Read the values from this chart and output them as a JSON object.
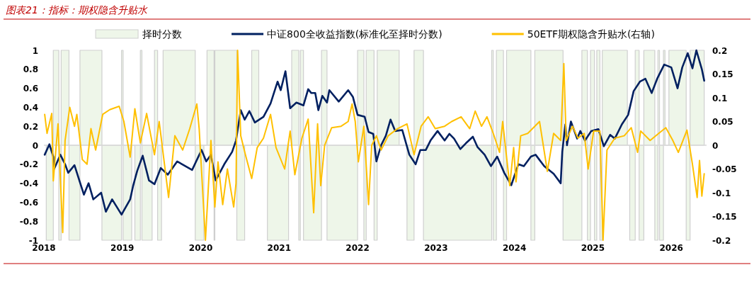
{
  "chart_data": {
    "type": "line",
    "title": "图表21：指标：期权隐含升贴水",
    "legend": "top",
    "xlim": [
      2018,
      2026.45
    ],
    "xticks": [
      2018,
      2019,
      2020,
      2021,
      2022,
      2023,
      2024,
      2025,
      2026
    ],
    "ylim": [
      -1,
      1
    ],
    "yticks": [
      -1,
      -0.8,
      -0.6,
      -0.4,
      -0.2,
      0,
      0.2,
      0.4,
      0.6,
      0.8,
      1
    ],
    "y2lim": [
      -0.2,
      0.2
    ],
    "y2ticks": [
      -0.2,
      -0.15,
      -0.1,
      -0.05,
      0,
      0.05,
      0.1,
      0.15,
      0.2
    ],
    "series": [
      {
        "name": "择时分数",
        "type": "area",
        "color": "#eef6e9",
        "x": [
          2018.03,
          2018.12,
          2018.12,
          2018.19,
          2018.19,
          2018.22,
          2018.22,
          2018.32,
          2018.32,
          2018.46,
          2018.46,
          2018.74,
          2018.74,
          2018.99,
          2018.99,
          2019.01,
          2019.01,
          2019.12,
          2019.12,
          2019.16,
          2019.16,
          2019.23,
          2019.23,
          2019.25,
          2019.25,
          2019.38,
          2019.38,
          2019.41,
          2019.41,
          2019.45,
          2019.45,
          2019.5,
          2019.5,
          2019.52,
          2019.52,
          2019.93,
          2019.93,
          2020.04,
          2020.04,
          2020.08,
          2020.08,
          2020.17,
          2020.17,
          2020.18,
          2020.18,
          2020.46,
          2020.46,
          2020.56,
          2020.56,
          2020.65,
          2020.65,
          2020.74,
          2020.74,
          2020.85,
          2020.85,
          2021.12,
          2021.12,
          2021.16,
          2021.16,
          2021.25,
          2021.25,
          2021.27,
          2021.27,
          2021.31,
          2021.31,
          2021.54,
          2021.54,
          2021.61,
          2021.61,
          2022.0,
          2022.0,
          2022.08,
          2022.08,
          2022.11,
          2022.11,
          2022.21,
          2022.21,
          2022.25,
          2022.25,
          2022.53,
          2022.53,
          2022.63,
          2022.63,
          2022.72,
          2022.72,
          2022.84,
          2022.84,
          2023.71,
          2023.71,
          2023.73,
          2023.73,
          2023.77,
          2023.77,
          2023.86,
          2023.86,
          2023.9,
          2023.9,
          2024.21,
          2024.21,
          2024.26,
          2024.26,
          2024.62,
          2024.62,
          2024.86,
          2024.86,
          2024.93,
          2024.93,
          2024.97,
          2024.97,
          2025.02,
          2025.02,
          2025.05,
          2025.05,
          2025.09,
          2025.09,
          2025.12,
          2025.12,
          2025.44,
          2025.44,
          2025.47,
          2025.47,
          2025.54,
          2025.54,
          2025.59,
          2025.59,
          2025.65,
          2025.65,
          2025.79,
          2025.79,
          2025.83,
          2025.83,
          2025.85,
          2025.85,
          2025.9,
          2025.9,
          2025.92,
          2025.92,
          2025.97,
          2025.97,
          2026.19,
          2026.19,
          2026.24,
          2026.24,
          2026.42
        ],
        "values": [
          -1,
          -1,
          1,
          1,
          -1,
          -1,
          1,
          1,
          -1,
          -1,
          1,
          1,
          -1,
          -1,
          1,
          1,
          -1,
          -1,
          0,
          0,
          -1,
          -1,
          1,
          1,
          -1,
          -1,
          0,
          0,
          1,
          1,
          -1,
          -1,
          0,
          0,
          1,
          1,
          -1,
          -1,
          0,
          0,
          1,
          1,
          -1,
          -1,
          1,
          1,
          -1,
          -1,
          0,
          0,
          1,
          1,
          0,
          0,
          -1,
          -1,
          0,
          0,
          1,
          1,
          -1,
          -1,
          1,
          1,
          -1,
          -1,
          1,
          1,
          -1,
          -1,
          1,
          1,
          -1,
          -1,
          1,
          1,
          -1,
          -1,
          1,
          1,
          0,
          0,
          -1,
          -1,
          1,
          1,
          -1,
          -1,
          1,
          1,
          -1,
          -1,
          1,
          1,
          -1,
          -1,
          1,
          1,
          -1,
          -1,
          1,
          1,
          -1,
          -1,
          1,
          1,
          -1,
          -1,
          1,
          1,
          -1,
          -1,
          1,
          1,
          -1,
          -1,
          1,
          1,
          0,
          0,
          -1,
          -1,
          1,
          1,
          -1,
          -1,
          1,
          1,
          -1,
          -1,
          1,
          1,
          -1,
          -1,
          1,
          1,
          0,
          0,
          1,
          1,
          -1,
          -1,
          1,
          1
        ]
      },
      {
        "name": "中证800全收益指数(标准化至择时分数)",
        "color": "#002060",
        "x": [
          2018.01,
          2018.07,
          2018.12,
          2018.13,
          2018.21,
          2018.27,
          2018.31,
          2018.39,
          2018.51,
          2018.57,
          2018.63,
          2018.73,
          2018.79,
          2018.87,
          2018.93,
          2018.99,
          2019.1,
          2019.14,
          2019.19,
          2019.26,
          2019.34,
          2019.41,
          2019.49,
          2019.58,
          2019.7,
          2019.89,
          2020.01,
          2020.07,
          2020.13,
          2020.19,
          2020.3,
          2020.4,
          2020.45,
          2020.51,
          2020.56,
          2020.62,
          2020.69,
          2020.8,
          2020.89,
          2020.98,
          2021.02,
          2021.08,
          2021.14,
          2021.22,
          2021.31,
          2021.37,
          2021.41,
          2021.46,
          2021.5,
          2021.55,
          2021.61,
          2021.64,
          2021.76,
          2021.88,
          2021.94,
          2022.0,
          2022.09,
          2022.14,
          2022.2,
          2022.24,
          2022.3,
          2022.36,
          2022.42,
          2022.48,
          2022.57,
          2022.66,
          2022.74,
          2022.8,
          2022.87,
          2022.93,
          2023.02,
          2023.11,
          2023.17,
          2023.23,
          2023.31,
          2023.38,
          2023.47,
          2023.53,
          2023.62,
          2023.7,
          2023.78,
          2023.87,
          2023.96,
          2024.05,
          2024.12,
          2024.21,
          2024.27,
          2024.38,
          2024.5,
          2024.59,
          2024.61,
          2024.65,
          2024.67,
          2024.72,
          2024.8,
          2024.84,
          2024.9,
          2024.98,
          2025.07,
          2025.14,
          2025.22,
          2025.28,
          2025.37,
          2025.45,
          2025.52,
          2025.6,
          2025.67,
          2025.75,
          2025.82,
          2025.91,
          2026.0,
          2026.08,
          2026.14,
          2026.21,
          2026.27,
          2026.32,
          2026.39,
          2026.42
        ],
        "values": [
          -0.1,
          0.01,
          -0.12,
          -0.25,
          -0.1,
          -0.2,
          -0.29,
          -0.21,
          -0.52,
          -0.4,
          -0.57,
          -0.5,
          -0.7,
          -0.57,
          -0.65,
          -0.73,
          -0.57,
          -0.42,
          -0.27,
          -0.11,
          -0.37,
          -0.41,
          -0.24,
          -0.31,
          -0.17,
          -0.26,
          -0.05,
          -0.17,
          -0.1,
          -0.37,
          -0.2,
          -0.07,
          0.05,
          0.37,
          0.27,
          0.36,
          0.24,
          0.3,
          0.44,
          0.67,
          0.58,
          0.78,
          0.39,
          0.45,
          0.42,
          0.59,
          0.55,
          0.55,
          0.37,
          0.52,
          0.45,
          0.58,
          0.46,
          0.58,
          0.51,
          0.32,
          0.3,
          0.14,
          0.12,
          -0.17,
          0.0,
          0.1,
          0.27,
          0.15,
          0.16,
          -0.1,
          -0.2,
          -0.05,
          -0.05,
          0.05,
          0.15,
          0.05,
          0.12,
          0.07,
          -0.04,
          0.02,
          0.09,
          -0.02,
          -0.1,
          -0.22,
          -0.12,
          -0.29,
          -0.42,
          -0.2,
          -0.22,
          -0.12,
          -0.1,
          -0.22,
          -0.3,
          -0.4,
          -0.07,
          0.22,
          0.0,
          0.25,
          0.07,
          0.15,
          0.05,
          0.15,
          0.17,
          -0.01,
          0.11,
          0.07,
          0.22,
          0.32,
          0.57,
          0.67,
          0.7,
          0.55,
          0.7,
          0.85,
          0.82,
          0.6,
          0.82,
          0.97,
          0.81,
          1.0,
          0.8,
          0.68
        ]
      },
      {
        "name": "50ETF期权隐含升贴水(右轴)",
        "axis": "y2",
        "color": "#ffc000",
        "x": [
          2018.01,
          2018.04,
          2018.1,
          2018.12,
          2018.18,
          2018.24,
          2018.27,
          2018.33,
          2018.39,
          2018.42,
          2018.49,
          2018.55,
          2018.6,
          2018.66,
          2018.75,
          2018.84,
          2018.96,
          2019.02,
          2019.1,
          2019.16,
          2019.23,
          2019.31,
          2019.41,
          2019.47,
          2019.59,
          2019.67,
          2019.77,
          2019.86,
          2019.95,
          2019.98,
          2020.06,
          2020.13,
          2020.18,
          2020.22,
          2020.28,
          2020.34,
          2020.42,
          2020.45,
          2020.47,
          2020.51,
          2020.57,
          2020.65,
          2020.72,
          2020.8,
          2020.89,
          2020.96,
          2021.07,
          2021.14,
          2021.2,
          2021.29,
          2021.37,
          2021.44,
          2021.49,
          2021.53,
          2021.58,
          2021.67,
          2021.79,
          2021.88,
          2021.93,
          2021.97,
          2022.01,
          2022.08,
          2022.14,
          2022.18,
          2022.24,
          2022.3,
          2022.39,
          2022.51,
          2022.63,
          2022.72,
          2022.81,
          2022.9,
          2022.99,
          2023.11,
          2023.2,
          2023.32,
          2023.43,
          2023.5,
          2023.58,
          2023.65,
          2023.73,
          2023.81,
          2023.85,
          2023.94,
          2023.99,
          2024.02,
          2024.08,
          2024.17,
          2024.32,
          2024.42,
          2024.5,
          2024.59,
          2024.63,
          2024.66,
          2024.74,
          2024.81,
          2024.89,
          2024.94,
          2025.01,
          2025.09,
          2025.13,
          2025.18,
          2025.28,
          2025.4,
          2025.49,
          2025.57,
          2025.61,
          2025.73,
          2025.84,
          2025.93,
          2026.02,
          2026.09,
          2026.2,
          2026.27,
          2026.33,
          2026.36,
          2026.39,
          2026.42
        ],
        "values": [
          0.065,
          0.025,
          0.067,
          -0.075,
          0.045,
          -0.184,
          0.01,
          0.08,
          0.04,
          0.065,
          -0.03,
          -0.04,
          0.035,
          -0.01,
          0.065,
          0.075,
          0.082,
          0.05,
          -0.025,
          0.077,
          0.005,
          0.067,
          -0.02,
          0.05,
          -0.11,
          0.02,
          -0.01,
          0.035,
          0.087,
          0.035,
          -0.2,
          0.01,
          -0.13,
          -0.035,
          -0.125,
          -0.05,
          -0.13,
          -0.08,
          0.2,
          0.02,
          -0.02,
          -0.07,
          -0.005,
          0.015,
          0.065,
          -0.005,
          -0.05,
          0.03,
          -0.062,
          0.015,
          0.055,
          -0.142,
          0.045,
          -0.085,
          0.0,
          0.037,
          0.04,
          0.05,
          0.087,
          0.05,
          -0.035,
          0.04,
          -0.125,
          0.0,
          0.02,
          -0.01,
          0.02,
          0.035,
          0.045,
          -0.02,
          0.04,
          0.06,
          0.035,
          0.04,
          0.05,
          0.06,
          0.035,
          0.072,
          0.04,
          0.06,
          0.025,
          -0.015,
          0.05,
          -0.085,
          -0.005,
          -0.077,
          0.02,
          0.025,
          0.05,
          -0.055,
          0.025,
          0.01,
          0.172,
          0.01,
          0.04,
          0.015,
          0.025,
          -0.05,
          0.03,
          0.03,
          -0.2,
          -0.01,
          0.015,
          0.02,
          0.037,
          -0.015,
          0.03,
          0.01,
          0.025,
          0.037,
          0.01,
          -0.015,
          0.032,
          -0.04,
          -0.11,
          -0.032,
          -0.107,
          -0.06
        ]
      }
    ]
  }
}
